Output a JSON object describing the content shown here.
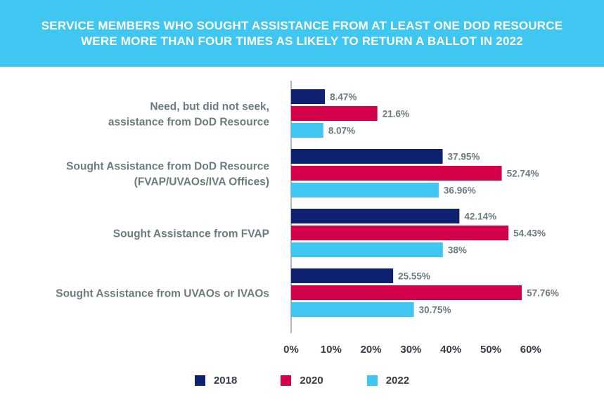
{
  "header": {
    "title_line1": "SERVICE MEMBERS WHO SOUGHT ASSISTANCE FROM AT LEAST ONE DOD RESOURCE",
    "title_line2": "WERE MORE THAN FOUR TIMES AS LIKELY TO RETURN A BALLOT IN 2022"
  },
  "colors": {
    "header_bg": "#3fc6f1",
    "s2018": "#0d2170",
    "s2020": "#d4004a",
    "s2022": "#3fc6f1",
    "category_text": "#6b7b80",
    "value_text": "#6b7b80",
    "tick_text": "#333b47",
    "axis": "#9aa3a8"
  },
  "chart_data": {
    "type": "bar",
    "orientation": "horizontal",
    "title": "SERVICE MEMBERS WHO SOUGHT ASSISTANCE FROM AT LEAST ONE DOD RESOURCE WERE MORE THAN FOUR TIMES AS LIKELY TO RETURN A BALLOT IN 2022",
    "categories": [
      [
        "Need, but did not seek,",
        "assistance from DoD Resource"
      ],
      [
        "Sought Assistance from DoD Resource",
        "(FVAP/UVAOs/IVA Offices)"
      ],
      [
        "Sought Assistance from FVAP"
      ],
      [
        "Sought Assistance from UVAOs or IVAOs"
      ]
    ],
    "series": [
      {
        "name": "2018",
        "values": [
          8.47,
          37.95,
          42.14,
          25.55
        ],
        "labels": [
          "8.47%",
          "37.95%",
          "42.14%",
          "25.55%"
        ]
      },
      {
        "name": "2020",
        "values": [
          21.6,
          52.74,
          54.43,
          57.76
        ],
        "labels": [
          "21.6%",
          "52.74%",
          "54.43%",
          "57.76%"
        ]
      },
      {
        "name": "2022",
        "values": [
          8.07,
          36.96,
          38,
          30.75
        ],
        "labels": [
          "8.07%",
          "36.96%",
          "38%",
          "30.75%"
        ]
      }
    ],
    "xlim": [
      0,
      60
    ],
    "xticks": [
      "0%",
      "10%",
      "20%",
      "30%",
      "40%",
      "50%",
      "60%"
    ],
    "grid": false,
    "legend_position": "bottom-center"
  },
  "legend": [
    {
      "label": "2018"
    },
    {
      "label": "2020"
    },
    {
      "label": "2022"
    }
  ]
}
